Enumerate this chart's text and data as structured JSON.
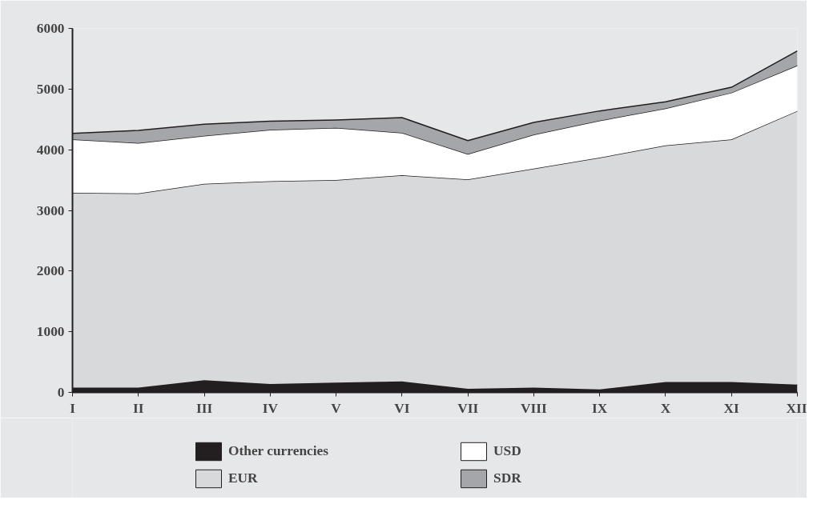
{
  "chart_data": {
    "type": "area",
    "stacked": true,
    "categories": [
      "I",
      "II",
      "III",
      "IV",
      "V",
      "VI",
      "VII",
      "VIII",
      "IX",
      "X",
      "XI",
      "XII"
    ],
    "ylim": [
      0,
      6000
    ],
    "yticks": [
      0,
      1000,
      2000,
      3000,
      4000,
      5000,
      6000
    ],
    "legend": "bottom",
    "series": [
      {
        "name": "Other currencies",
        "color": "#231f20",
        "values": [
          80,
          80,
          200,
          140,
          160,
          180,
          60,
          80,
          50,
          170,
          170,
          130
        ]
      },
      {
        "name": "EUR",
        "color": "#d8d9db",
        "values": [
          3210,
          3200,
          3240,
          3340,
          3340,
          3400,
          3450,
          3610,
          3820,
          3900,
          4000,
          4510
        ]
      },
      {
        "name": "USD",
        "color": "#ffffff",
        "values": [
          880,
          830,
          790,
          850,
          860,
          700,
          420,
          560,
          610,
          610,
          770,
          750
        ]
      },
      {
        "name": "SDR",
        "color": "#a5a6aa",
        "values": [
          100,
          210,
          190,
          140,
          130,
          250,
          220,
          200,
          160,
          110,
          90,
          240
        ]
      }
    ]
  }
}
